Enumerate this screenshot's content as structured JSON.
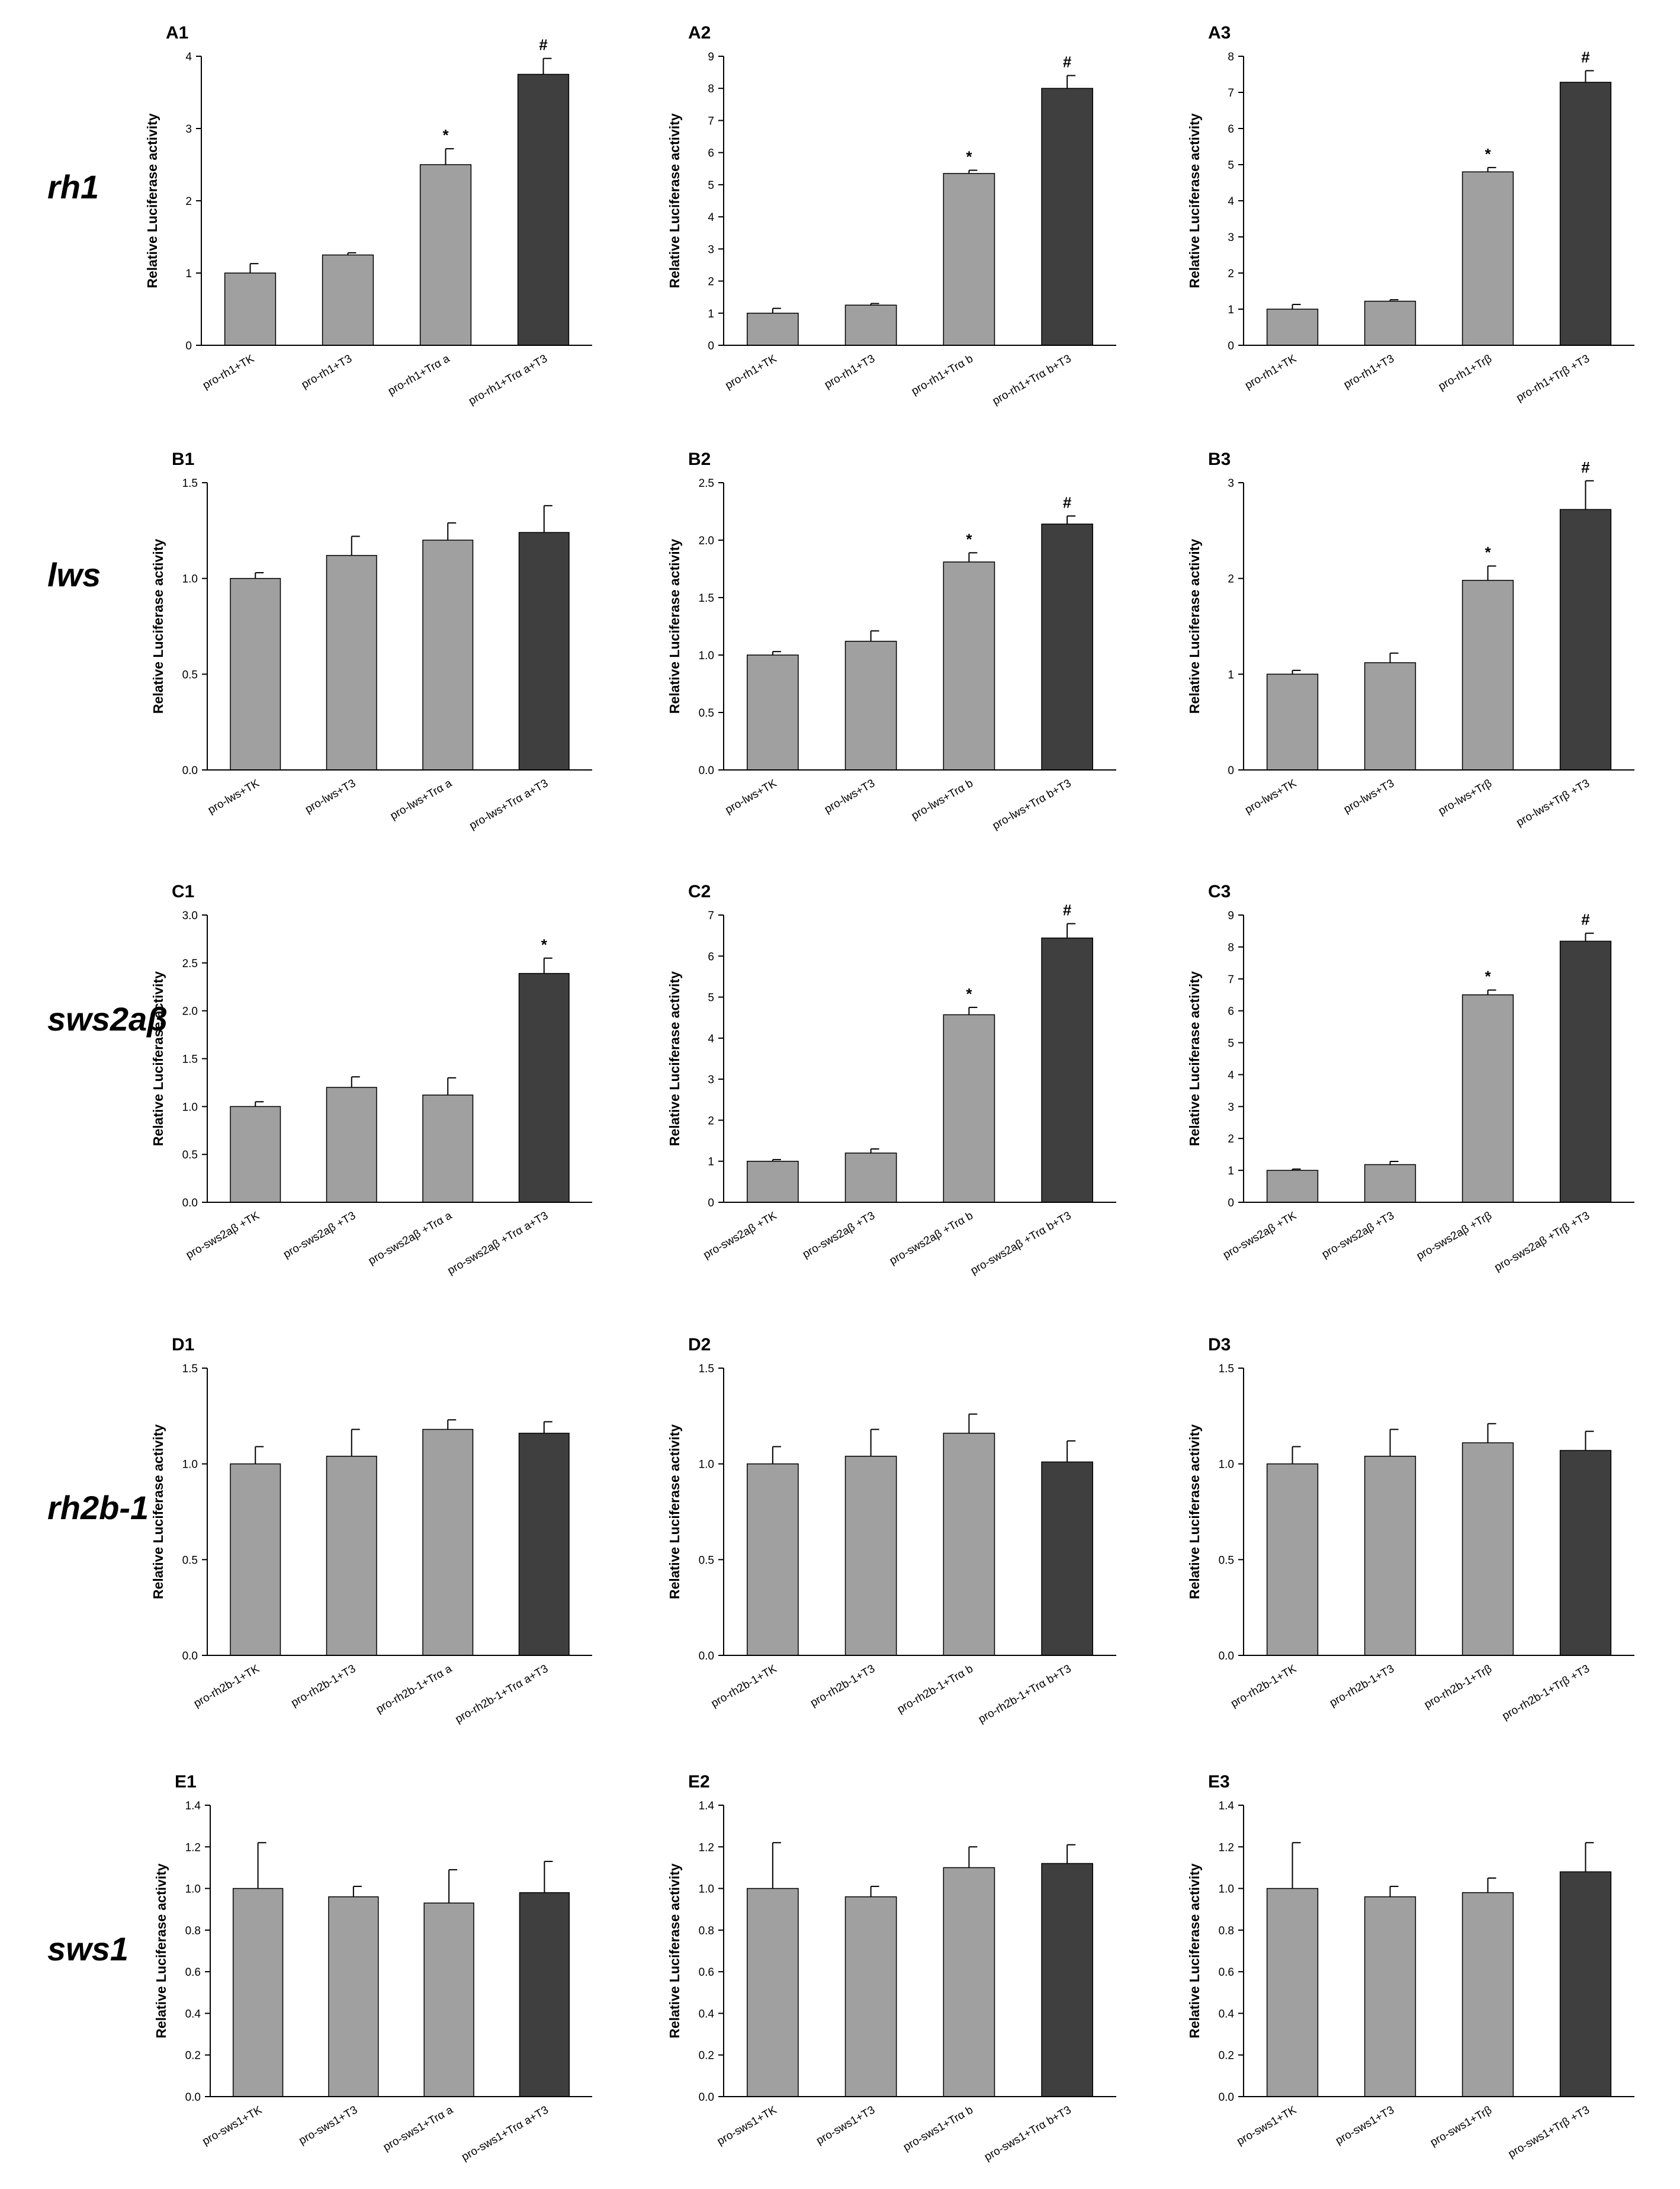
{
  "figure": {
    "row_labels": [
      "rh1",
      "lws",
      "sws2aβ",
      "rh2b-1",
      "sws1"
    ],
    "colors": {
      "light_bar": "#a0a0a0",
      "dark_bar": "#3f3f3f",
      "axis": "#000000"
    }
  },
  "chart_data": [
    {
      "id": "A1",
      "type": "bar",
      "ylabel": "Relative Luciferase activity",
      "ylim": [
        0,
        4
      ],
      "yticks": [
        "0",
        "1",
        "2",
        "3",
        "4"
      ],
      "categories": [
        "pro-rh1+TK",
        "pro-rh1+T3",
        "pro-rh1+Trα a",
        "pro-rh1+Trα a+T3"
      ],
      "values": [
        1.0,
        1.25,
        2.5,
        3.75
      ],
      "errors": [
        0.13,
        0.03,
        0.22,
        0.22
      ],
      "significance": [
        "",
        "",
        "*",
        "#"
      ]
    },
    {
      "id": "A2",
      "type": "bar",
      "ylabel": "Relative Luciferase activity",
      "ylim": [
        0,
        9
      ],
      "yticks": [
        "0",
        "1",
        "2",
        "3",
        "4",
        "5",
        "6",
        "7",
        "8",
        "9"
      ],
      "categories": [
        "pro-rh1+TK",
        "pro-rh1+T3",
        "pro-rh1+Trα b",
        "pro-rh1+Trα b+T3"
      ],
      "values": [
        1.0,
        1.25,
        5.35,
        8.0
      ],
      "errors": [
        0.15,
        0.05,
        0.1,
        0.4
      ],
      "significance": [
        "",
        "",
        "*",
        "#"
      ]
    },
    {
      "id": "A3",
      "type": "bar",
      "ylabel": "Relative Luciferase activity",
      "ylim": [
        0,
        8
      ],
      "yticks": [
        "0",
        "1",
        "2",
        "3",
        "4",
        "5",
        "6",
        "7",
        "8"
      ],
      "categories": [
        "pro-rh1+TK",
        "pro-rh1+T3",
        "pro-rh1+Trβ",
        "pro-rh1+Trβ +T3"
      ],
      "values": [
        1.0,
        1.22,
        4.8,
        7.28
      ],
      "errors": [
        0.13,
        0.04,
        0.12,
        0.32
      ],
      "significance": [
        "",
        "",
        "*",
        "#"
      ]
    },
    {
      "id": "B1",
      "type": "bar",
      "ylabel": "Relative Luciferase activity",
      "ylim": [
        0,
        1.5
      ],
      "yticks": [
        "0.0",
        "0.5",
        "1.0",
        "1.5"
      ],
      "categories": [
        "pro-lws+TK",
        "pro-lws+T3",
        "pro-lws+Trα a",
        "pro-lws+Trα a+T3"
      ],
      "values": [
        1.0,
        1.12,
        1.2,
        1.24
      ],
      "errors": [
        0.03,
        0.1,
        0.09,
        0.14
      ],
      "significance": [
        "",
        "",
        "",
        ""
      ]
    },
    {
      "id": "B2",
      "type": "bar",
      "ylabel": "Relative Luciferase activity",
      "ylim": [
        0,
        2.5
      ],
      "yticks": [
        "0.0",
        "0.5",
        "1.0",
        "1.5",
        "2.0",
        "2.5"
      ],
      "categories": [
        "pro-lws+TK",
        "pro-lws+T3",
        "pro-lws+Trα b",
        "pro-lws+Trα b+T3"
      ],
      "values": [
        1.0,
        1.12,
        1.81,
        2.14
      ],
      "errors": [
        0.03,
        0.09,
        0.08,
        0.07
      ],
      "significance": [
        "",
        "",
        "*",
        "#"
      ]
    },
    {
      "id": "B3",
      "type": "bar",
      "ylabel": "Relative Luciferase activity",
      "ylim": [
        0,
        3
      ],
      "yticks": [
        "0",
        "1",
        "2",
        "3"
      ],
      "categories": [
        "pro-lws+TK",
        "pro-lws+T3",
        "pro-lws+Trβ",
        "pro-lws+Trβ +T3"
      ],
      "values": [
        1.0,
        1.12,
        1.98,
        2.72
      ],
      "errors": [
        0.04,
        0.1,
        0.15,
        0.3
      ],
      "significance": [
        "",
        "",
        "*",
        "#"
      ]
    },
    {
      "id": "C1",
      "type": "bar",
      "ylabel": "Relative Luciferase activity",
      "ylim": [
        0,
        3
      ],
      "yticks": [
        "0.0",
        "0.5",
        "1.0",
        "1.5",
        "2.0",
        "2.5",
        "3.0"
      ],
      "categories": [
        "pro-sws2aβ +TK",
        "pro-sws2aβ +T3",
        "pro-sws2aβ +Trα a",
        "pro-sws2aβ +Trα a+T3"
      ],
      "values": [
        1.0,
        1.2,
        1.12,
        2.39
      ],
      "errors": [
        0.05,
        0.11,
        0.18,
        0.16
      ],
      "significance": [
        "",
        "",
        "",
        "*"
      ]
    },
    {
      "id": "C2",
      "type": "bar",
      "ylabel": "Relative Luciferase activity",
      "ylim": [
        0,
        7
      ],
      "yticks": [
        "0",
        "1",
        "2",
        "3",
        "4",
        "5",
        "6",
        "7"
      ],
      "categories": [
        "pro-sws2aβ +TK",
        "pro-sws2aβ +T3",
        "pro-sws2aβ +Trα b",
        "pro-sws2aβ +Trα b+T3"
      ],
      "values": [
        1.0,
        1.2,
        4.57,
        6.44
      ],
      "errors": [
        0.04,
        0.1,
        0.18,
        0.35
      ],
      "significance": [
        "",
        "",
        "*",
        "#"
      ]
    },
    {
      "id": "C3",
      "type": "bar",
      "ylabel": "Relative Luciferase activity",
      "ylim": [
        0,
        9
      ],
      "yticks": [
        "0",
        "1",
        "2",
        "3",
        "4",
        "5",
        "6",
        "7",
        "8",
        "9"
      ],
      "categories": [
        "pro-sws2aβ +TK",
        "pro-sws2aβ +T3",
        "pro-sws2aβ +Trβ",
        "pro-sws2aβ +Trβ +T3"
      ],
      "values": [
        1.0,
        1.18,
        6.5,
        8.18
      ],
      "errors": [
        0.04,
        0.1,
        0.15,
        0.25
      ],
      "significance": [
        "",
        "",
        "*",
        "#"
      ]
    },
    {
      "id": "D1",
      "type": "bar",
      "ylabel": "Relative Luciferase activity",
      "ylim": [
        0,
        1.5
      ],
      "yticks": [
        "0.0",
        "0.5",
        "1.0",
        "1.5"
      ],
      "categories": [
        "pro-rh2b-1+TK",
        "pro-rh2b-1+T3",
        "pro-rh2b-1+Trα a",
        "pro-rh2b-1+Trα a+T3"
      ],
      "values": [
        1.0,
        1.04,
        1.18,
        1.16
      ],
      "errors": [
        0.09,
        0.14,
        0.05,
        0.06
      ],
      "significance": [
        "",
        "",
        "",
        ""
      ]
    },
    {
      "id": "D2",
      "type": "bar",
      "ylabel": "Relative Luciferase activity",
      "ylim": [
        0,
        1.5
      ],
      "yticks": [
        "0.0",
        "0.5",
        "1.0",
        "1.5"
      ],
      "categories": [
        "pro-rh2b-1+TK",
        "pro-rh2b-1+T3",
        "pro-rh2b-1+Trα b",
        "pro-rh2b-1+Trα b+T3"
      ],
      "values": [
        1.0,
        1.04,
        1.16,
        1.01
      ],
      "errors": [
        0.09,
        0.14,
        0.1,
        0.11
      ],
      "significance": [
        "",
        "",
        "",
        ""
      ]
    },
    {
      "id": "D3",
      "type": "bar",
      "ylabel": "Relative Luciferase activity",
      "ylim": [
        0,
        1.5
      ],
      "yticks": [
        "0.0",
        "0.5",
        "1.0",
        "1.5"
      ],
      "categories": [
        "pro-rh2b-1+TK",
        "pro-rh2b-1+T3",
        "pro-rh2b-1+Trβ",
        "pro-rh2b-1+Trβ +T3"
      ],
      "values": [
        1.0,
        1.04,
        1.11,
        1.07
      ],
      "errors": [
        0.09,
        0.14,
        0.1,
        0.1
      ],
      "significance": [
        "",
        "",
        "",
        ""
      ]
    },
    {
      "id": "E1",
      "type": "bar",
      "ylabel": "Relative Luciferase activity",
      "ylim": [
        0,
        1.4
      ],
      "yticks": [
        "0.0",
        "0.2",
        "0.4",
        "0.6",
        "0.8",
        "1.0",
        "1.2",
        "1.4"
      ],
      "categories": [
        "pro-sws1+TK",
        "pro-sws1+T3",
        "pro-sws1+Trα a",
        "pro-sws1+Trα a+T3"
      ],
      "values": [
        1.0,
        0.96,
        0.93,
        0.98
      ],
      "errors": [
        0.22,
        0.05,
        0.16,
        0.15
      ],
      "significance": [
        "",
        "",
        "",
        ""
      ]
    },
    {
      "id": "E2",
      "type": "bar",
      "ylabel": "Relative Luciferase activity",
      "ylim": [
        0,
        1.4
      ],
      "yticks": [
        "0.0",
        "0.2",
        "0.4",
        "0.6",
        "0.8",
        "1.0",
        "1.2",
        "1.4"
      ],
      "categories": [
        "pro-sws1+TK",
        "pro-sws1+T3",
        "pro-sws1+Trα b",
        "pro-sws1+Trα b+T3"
      ],
      "values": [
        1.0,
        0.96,
        1.1,
        1.12
      ],
      "errors": [
        0.22,
        0.05,
        0.1,
        0.09
      ],
      "significance": [
        "",
        "",
        "",
        ""
      ]
    },
    {
      "id": "E3",
      "type": "bar",
      "ylabel": "Relative Luciferase activity",
      "ylim": [
        0,
        1.4
      ],
      "yticks": [
        "0.0",
        "0.2",
        "0.4",
        "0.6",
        "0.8",
        "1.0",
        "1.2",
        "1.4"
      ],
      "categories": [
        "pro-sws1+TK",
        "pro-sws1+T3",
        "pro-sws1+Trβ",
        "pro-sws1+Trβ +T3"
      ],
      "values": [
        1.0,
        0.96,
        0.98,
        1.08
      ],
      "errors": [
        0.22,
        0.05,
        0.07,
        0.14
      ],
      "significance": [
        "",
        "",
        "",
        ""
      ]
    }
  ]
}
